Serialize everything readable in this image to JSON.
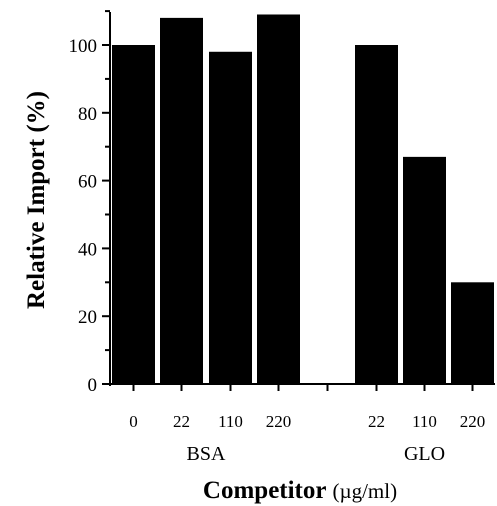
{
  "chart_data": {
    "type": "bar",
    "categories": [
      "0",
      "22",
      "110",
      "220",
      "22",
      "110",
      "220"
    ],
    "groups": [
      {
        "name": "BSA",
        "indices": [
          0,
          1,
          2,
          3
        ]
      },
      {
        "name": "GLO",
        "indices": [
          4,
          5,
          6
        ]
      }
    ],
    "values": [
      100,
      108,
      98,
      109,
      100,
      67,
      30
    ],
    "title": "",
    "xlabel": "Competitor",
    "xlabel_unit": "(µg/ml)",
    "ylabel": "Relative Import (%)",
    "ylim": [
      0,
      110
    ],
    "yticks": [
      0,
      20,
      40,
      60,
      80,
      100
    ],
    "bar_color": "#000000",
    "grid": false,
    "legend": "none"
  }
}
